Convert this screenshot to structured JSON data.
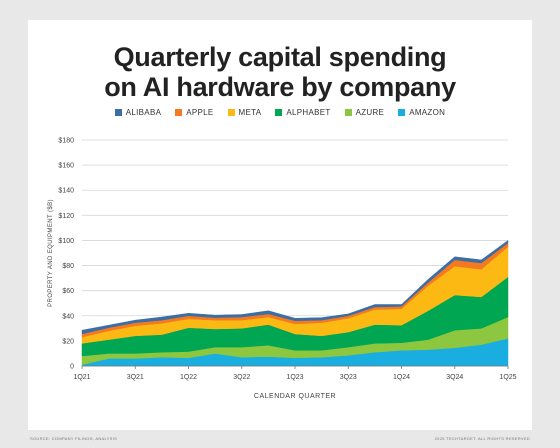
{
  "page": {
    "background": "#e8e8e8",
    "footer_left": "SOURCE: COMPANY FILINGS; ANALYSIS",
    "footer_right": "2025 TECHTARGET. ALL RIGHTS RESERVED"
  },
  "chart_data": {
    "type": "area",
    "stacked": true,
    "title_line1": "Quarterly capital spending",
    "title_line2": "on AI hardware by company",
    "xlabel": "CALENDAR QUARTER",
    "ylabel": "PROPERTY AND EQUIPMENT ($B)",
    "ylim": [
      0,
      180
    ],
    "yticks": [
      0,
      20,
      40,
      60,
      80,
      100,
      120,
      140,
      160,
      180
    ],
    "ytick_labels": [
      "0",
      "$20",
      "$40",
      "$60",
      "$80",
      "$100",
      "$120",
      "$140",
      "$160",
      "$180"
    ],
    "x_tick_labels": [
      "1Q21",
      "3Q21",
      "1Q22",
      "3Q22",
      "1Q23",
      "3Q23",
      "1Q24",
      "3Q24",
      "1Q25"
    ],
    "x_tick_index": [
      0,
      2,
      4,
      6,
      8,
      10,
      12,
      14,
      16
    ],
    "num_points": 17,
    "grid": "horizontal",
    "legend_position": "top",
    "series": [
      {
        "name": "AMAZON",
        "color": "#1aaee0",
        "values": [
          1,
          6,
          6,
          7,
          6.5,
          10,
          7,
          7.5,
          6.5,
          7,
          8.5,
          11,
          12.5,
          13,
          14.5,
          17,
          22
        ]
      },
      {
        "name": "AZURE",
        "color": "#8dc63f",
        "values": [
          7,
          4,
          4,
          4,
          5,
          5,
          8,
          9,
          6,
          5.5,
          6.5,
          7,
          6,
          8,
          14,
          13,
          17
        ]
      },
      {
        "name": "ALPHABET",
        "color": "#00a651",
        "values": [
          10,
          11,
          14,
          14,
          19,
          14.5,
          15,
          16.5,
          13,
          11.5,
          12,
          15,
          14,
          23,
          28,
          25,
          32
        ]
      },
      {
        "name": "META",
        "color": "#fdb913",
        "values": [
          5,
          7,
          8,
          9,
          7,
          7,
          6.5,
          6,
          8,
          10.5,
          11,
          12,
          13,
          20,
          23,
          22,
          24
        ]
      },
      {
        "name": "APPLE",
        "color": "#f47920",
        "values": [
          2.5,
          2.5,
          2.5,
          2.5,
          2.5,
          2,
          2.5,
          2.5,
          2.5,
          2,
          2,
          2,
          2,
          2.5,
          5,
          5,
          3
        ]
      },
      {
        "name": "ALIBABA",
        "color": "#3a6ea5",
        "values": [
          3,
          2,
          2,
          2.5,
          2,
          2,
          2,
          2.5,
          2,
          2,
          1.5,
          2,
          1.5,
          2.5,
          2.5,
          2.5,
          2
        ]
      }
    ],
    "legend_order": [
      "ALIBABA",
      "APPLE",
      "META",
      "ALPHABET",
      "AZURE",
      "AMAZON"
    ]
  }
}
